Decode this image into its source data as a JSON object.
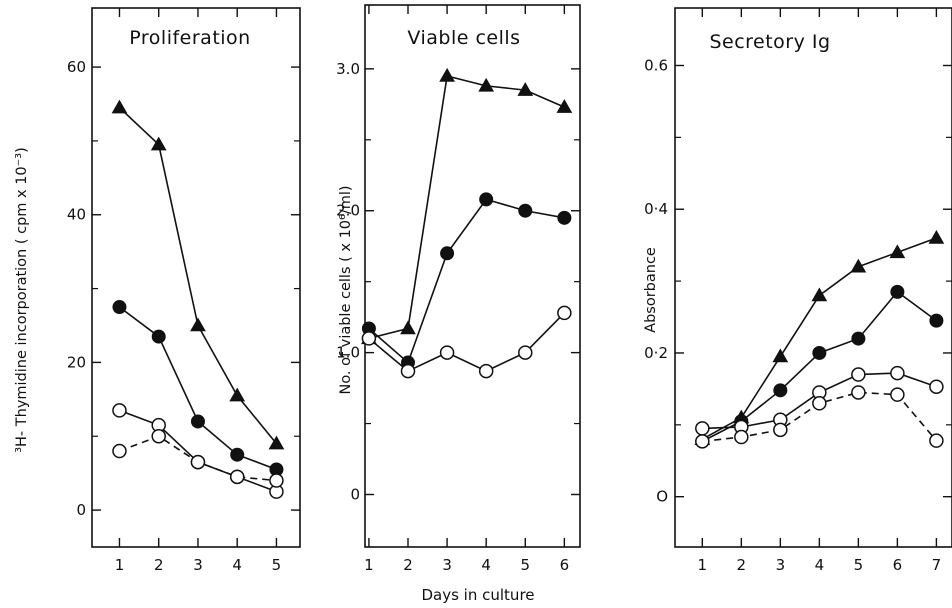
{
  "figure": {
    "xlabel_common": "Days in culture"
  },
  "chart_data": [
    {
      "type": "line",
      "title": "Proliferation",
      "ylabel": "³H- Thymidine incorporation ( cpm x 10⁻³)",
      "xticks": [
        1,
        2,
        3,
        4,
        5
      ],
      "yticks": [
        0,
        20,
        40,
        60
      ],
      "xlim": [
        0.3,
        5.6
      ],
      "ylim": [
        -5,
        68
      ],
      "series": [
        {
          "marker": "filled-triangle",
          "dashed": false,
          "x": [
            1,
            2,
            3,
            4,
            5
          ],
          "y": [
            54.5,
            49.5,
            25,
            15.5,
            9
          ]
        },
        {
          "marker": "filled-circle",
          "dashed": false,
          "x": [
            1,
            2,
            3,
            4,
            5
          ],
          "y": [
            27.5,
            23.5,
            12,
            7.5,
            5.5
          ]
        },
        {
          "marker": "open-circle",
          "dashed": false,
          "x": [
            1,
            2,
            3,
            4,
            5
          ],
          "y": [
            13.5,
            11.5,
            6.5,
            4.5,
            2.5
          ]
        },
        {
          "marker": "open-circle",
          "dashed": true,
          "x": [
            1,
            2,
            3,
            4,
            5
          ],
          "y": [
            8,
            10,
            6.5,
            4.5,
            4
          ]
        }
      ]
    },
    {
      "type": "line",
      "title": "Viable cells",
      "ylabel": "No. of viable cells ( x 10⁶/ml)",
      "xticks": [
        1,
        2,
        3,
        4,
        5,
        6
      ],
      "ytick_labels": [
        "0",
        "1.0",
        "2.0",
        "3.0"
      ],
      "yticks": [
        0,
        1,
        2,
        3
      ],
      "xlim": [
        0.9,
        6.4
      ],
      "ylim": [
        -0.37,
        3.45
      ],
      "series": [
        {
          "marker": "filled-triangle",
          "dashed": false,
          "x": [
            1,
            2,
            3,
            4,
            5,
            6
          ],
          "y": [
            1.1,
            1.17,
            2.95,
            2.88,
            2.85,
            2.73
          ]
        },
        {
          "marker": "filled-circle",
          "dashed": false,
          "x": [
            1,
            2,
            3,
            4,
            5,
            6
          ],
          "y": [
            1.17,
            0.93,
            1.7,
            2.08,
            2.0,
            1.95
          ]
        },
        {
          "marker": "open-circle",
          "dashed": false,
          "x": [
            1,
            2,
            3,
            4,
            5,
            6
          ],
          "y": [
            1.1,
            0.87,
            1.0,
            0.87,
            1.0,
            1.28
          ]
        }
      ]
    },
    {
      "type": "line",
      "title": "Secretory Ig",
      "ylabel": "Absorbance",
      "xticks": [
        1,
        2,
        3,
        4,
        5,
        6,
        7
      ],
      "ytick_labels": [
        "O",
        "0·2",
        "0·4",
        "0.6"
      ],
      "yticks": [
        0,
        0.2,
        0.4,
        0.6
      ],
      "xlim": [
        0.3,
        7.4
      ],
      "ylim": [
        -0.07,
        0.68
      ],
      "series": [
        {
          "marker": "filled-triangle",
          "dashed": false,
          "x": [
            1,
            2,
            3,
            4,
            5,
            6,
            7
          ],
          "y": [
            0.08,
            0.11,
            0.195,
            0.28,
            0.32,
            0.34,
            0.36
          ]
        },
        {
          "marker": "filled-circle",
          "dashed": false,
          "x": [
            1,
            2,
            3,
            4,
            5,
            6,
            7
          ],
          "y": [
            0.077,
            0.105,
            0.148,
            0.2,
            0.22,
            0.285,
            0.245
          ]
        },
        {
          "marker": "open-circle",
          "dashed": false,
          "x": [
            1,
            2,
            3,
            4,
            5,
            6,
            7
          ],
          "y": [
            0.095,
            0.097,
            0.107,
            0.145,
            0.17,
            0.172,
            0.153
          ]
        },
        {
          "marker": "open-circle",
          "dashed": true,
          "x": [
            1,
            2,
            3,
            4,
            5,
            6,
            7
          ],
          "y": [
            0.077,
            0.083,
            0.093,
            0.13,
            0.145,
            0.142,
            0.078
          ]
        }
      ]
    }
  ]
}
